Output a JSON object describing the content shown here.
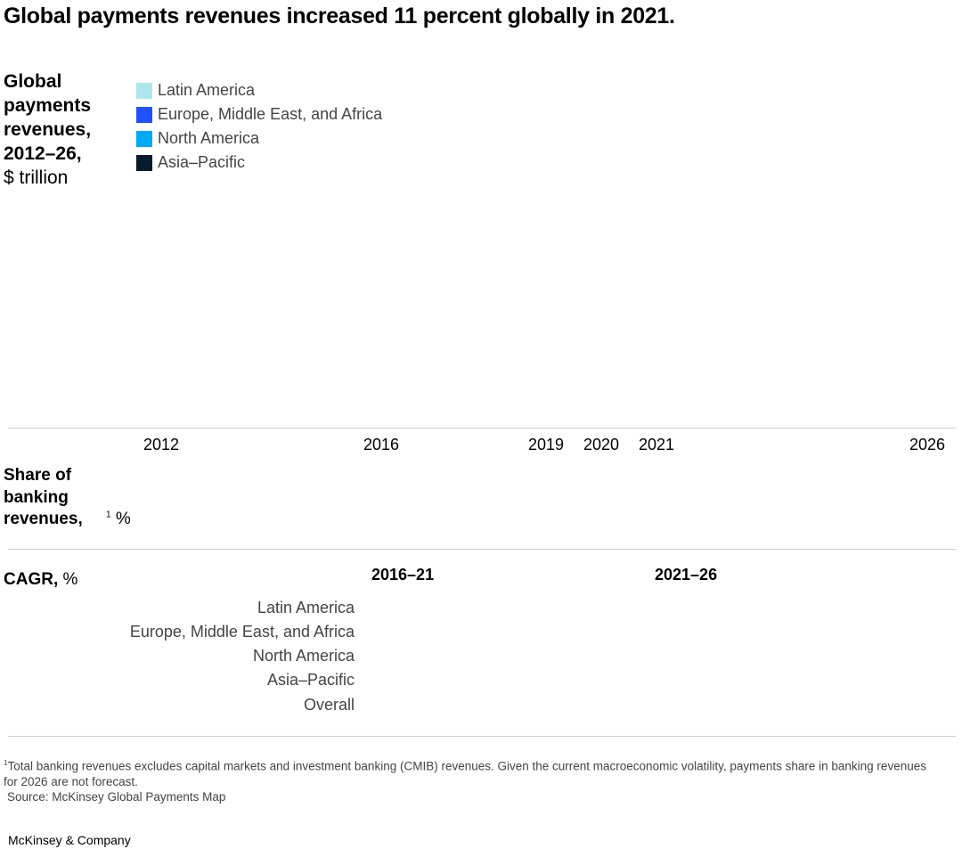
{
  "title": "Global payments revenues increased 11 percent globally in 2021.",
  "ylabel": {
    "bold": "Global payments revenues, 2012–26,",
    "unit": "$ trillion"
  },
  "share_label": {
    "bold": "Share of banking revenues,",
    "sup": "1",
    "unit": "%"
  },
  "cagr": {
    "label_bold": "CAGR,",
    "label_unit": "%",
    "periods": [
      "2016–21",
      "2021–26"
    ],
    "rows": [
      "Latin America",
      "Europe, Middle East, and Africa",
      "North America",
      "Asia–Pacific",
      "Overall"
    ]
  },
  "chart_data": {
    "type": "bar",
    "stacked": true,
    "categories": [
      "2012",
      "2016",
      "2019",
      "2020",
      "2021",
      "2026"
    ],
    "series": [
      {
        "name": "Latin America",
        "color": "#aee6ee"
      },
      {
        "name": "Europe, Middle East, and Africa",
        "color": "#2251ff"
      },
      {
        "name": "North America",
        "color": "#00a9f4"
      },
      {
        "name": "Asia–Pacific",
        "color": "#051c2c"
      }
    ],
    "legend_placement": "top-left"
  },
  "footnote": {
    "sup": "1",
    "text": "Total banking revenues excludes capital markets and investment banking (CMIB) revenues. Given the current macroeconomic volatility, payments share in banking revenues for 2026 are not forecast.",
    "source": "Source: McKinsey Global Payments Map"
  },
  "brand": "McKinsey & Company"
}
